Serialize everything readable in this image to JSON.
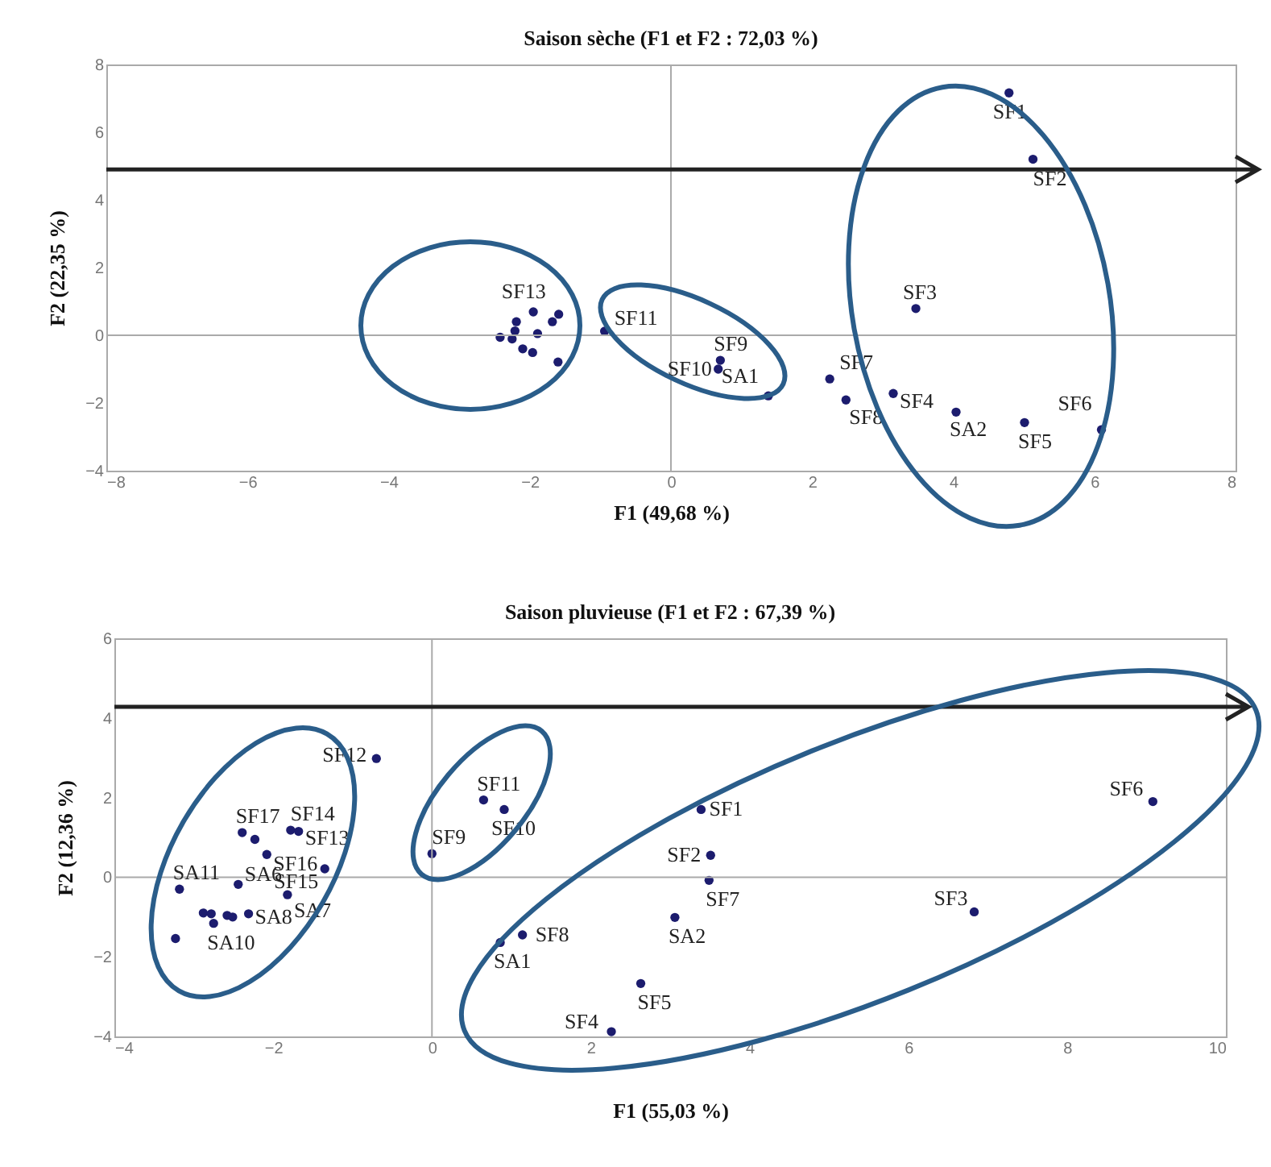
{
  "chart_data": [
    {
      "type": "scatter",
      "title": "Saison sèche  (F1 et F2 : 72,03 %)",
      "xlabel": "F1 (49,68 %)",
      "ylabel": "F2 (22,35 %)",
      "xlim": [
        -8,
        8
      ],
      "ylim": [
        -4,
        8
      ],
      "xticks": [
        -8,
        -6,
        -4,
        -2,
        0,
        2,
        4,
        6,
        8
      ],
      "yticks": [
        -4,
        -2,
        0,
        2,
        4,
        6,
        8
      ],
      "marker": "circle",
      "series": [
        {
          "color": "#1c1c6e",
          "x": [
            4.79,
            5.13,
            3.47,
            2.25,
            2.48,
            3.15,
            4.04,
            5.01,
            6.1,
            -0.94,
            0.7,
            0.67,
            1.38,
            -2.19,
            -1.95,
            -1.68,
            -1.59,
            -1.89,
            -2.42,
            -2.25,
            -2.1,
            -1.96,
            -1.6,
            -2.21
          ],
          "values": [
            7.16,
            5.2,
            0.79,
            -1.29,
            -1.91,
            -1.72,
            -2.27,
            -2.58,
            -2.79,
            0.12,
            -0.74,
            -1.0,
            -1.79,
            0.4,
            0.69,
            0.4,
            0.62,
            0.05,
            -0.06,
            -0.11,
            -0.4,
            -0.51,
            -0.79,
            0.13
          ]
        }
      ],
      "ref_lines": [
        {
          "axis": "x",
          "value": 0,
          "color": "#aaaaaa"
        },
        {
          "axis": "y",
          "value": 0,
          "color": "#aaaaaa"
        },
        {
          "axis": "y",
          "value": 4.9,
          "color": "#222222"
        }
      ],
      "annotations": [
        {
          "text": "SF1",
          "x": 4.79,
          "y": 7.16
        },
        {
          "text": "SF2",
          "x": 5.13,
          "y": 5.2
        },
        {
          "text": "SF3",
          "x": 3.47,
          "y": 0.79
        },
        {
          "text": "SF7",
          "x": 2.25,
          "y": -1.29
        },
        {
          "text": "SF8",
          "x": 2.48,
          "y": -1.91
        },
        {
          "text": "SF4",
          "x": 3.15,
          "y": -1.72
        },
        {
          "text": "SA2",
          "x": 4.04,
          "y": -2.27
        },
        {
          "text": "SF5",
          "x": 5.01,
          "y": -2.58
        },
        {
          "text": "SF6",
          "x": 6.1,
          "y": -2.79
        },
        {
          "text": "SF11",
          "x": -0.94,
          "y": 0.12
        },
        {
          "text": "SF9",
          "x": 0.7,
          "y": -0.74
        },
        {
          "text": "SF10",
          "x": 0.67,
          "y": -1.0
        },
        {
          "text": "SA1",
          "x": 1.38,
          "y": -1.79
        },
        {
          "text": "SF13",
          "x": -1.59,
          "y": 0.62
        }
      ]
    },
    {
      "type": "scatter",
      "title": "Saison pluvieuse (F1 et F2 : 67,39 %)",
      "xlabel": "F1 (55,03 %)",
      "ylabel": "F2 (12,36 %)",
      "xlim": [
        -4,
        10
      ],
      "ylim": [
        -4,
        6
      ],
      "xticks": [
        -4,
        -2,
        0,
        2,
        4,
        6,
        8,
        10
      ],
      "yticks": [
        -4,
        -2,
        0,
        2,
        4,
        6
      ],
      "marker": "circle",
      "series": [
        {
          "color": "#1c1c6e",
          "x": [
            -0.7,
            0.65,
            0.91,
            0.0,
            3.39,
            3.51,
            3.49,
            3.06,
            6.83,
            9.08,
            1.14,
            0.86,
            2.63,
            2.26,
            -2.39,
            -2.23,
            -1.78,
            -1.68,
            -2.08,
            -1.35,
            -2.44,
            -3.18,
            -1.82,
            -2.88,
            -2.78,
            -2.58,
            -2.51,
            -2.31,
            -2.75,
            -3.23
          ],
          "values": [
            2.98,
            1.94,
            1.7,
            0.59,
            1.7,
            0.55,
            -0.08,
            -1.01,
            -0.87,
            1.9,
            -1.45,
            -1.64,
            -2.67,
            -3.88,
            1.12,
            0.95,
            1.18,
            1.15,
            0.57,
            0.21,
            -0.18,
            -0.3,
            -0.44,
            -0.9,
            -0.92,
            -0.96,
            -1.0,
            -0.92,
            -1.16,
            -1.54
          ]
        }
      ],
      "ref_lines": [
        {
          "axis": "x",
          "value": 0,
          "color": "#aaaaaa"
        },
        {
          "axis": "y",
          "value": 0,
          "color": "#aaaaaa"
        },
        {
          "axis": "y",
          "value": 4.28,
          "color": "#222222"
        }
      ],
      "annotations": [
        {
          "text": "SF12",
          "x": -0.7,
          "y": 2.98
        },
        {
          "text": "SF11",
          "x": 0.65,
          "y": 1.94
        },
        {
          "text": "SF10",
          "x": 0.91,
          "y": 1.7
        },
        {
          "text": "SF9",
          "x": 0.0,
          "y": 0.59
        },
        {
          "text": "SF1",
          "x": 3.39,
          "y": 1.7
        },
        {
          "text": "SF2",
          "x": 3.51,
          "y": 0.55
        },
        {
          "text": "SF7",
          "x": 3.49,
          "y": -0.08
        },
        {
          "text": "SA2",
          "x": 3.06,
          "y": -1.01
        },
        {
          "text": "SF3",
          "x": 6.83,
          "y": -0.87
        },
        {
          "text": "SF6",
          "x": 9.08,
          "y": 1.9
        },
        {
          "text": "SF8",
          "x": 1.14,
          "y": -1.45
        },
        {
          "text": "SA1",
          "x": 0.86,
          "y": -1.64
        },
        {
          "text": "SF5",
          "x": 2.63,
          "y": -2.67
        },
        {
          "text": "SF4",
          "x": 2.26,
          "y": -3.88
        },
        {
          "text": "SF17",
          "x": -2.39,
          "y": 1.12
        },
        {
          "text": "SF14",
          "x": -1.78,
          "y": 1.18
        },
        {
          "text": "SF16",
          "x": -2.08,
          "y": 0.57
        },
        {
          "text": "SF13",
          "x": -1.68,
          "y": 1.15
        },
        {
          "text": "SA11",
          "x": -3.18,
          "y": -0.3
        },
        {
          "text": "SA6",
          "x": -2.44,
          "y": -0.18
        },
        {
          "text": "SF15",
          "x": -1.35,
          "y": 0.21
        },
        {
          "text": "SA7",
          "x": -1.82,
          "y": -0.44
        },
        {
          "text": "SA8",
          "x": -2.31,
          "y": -0.92
        },
        {
          "text": "SA10",
          "x": -2.75,
          "y": -1.16
        }
      ]
    }
  ]
}
